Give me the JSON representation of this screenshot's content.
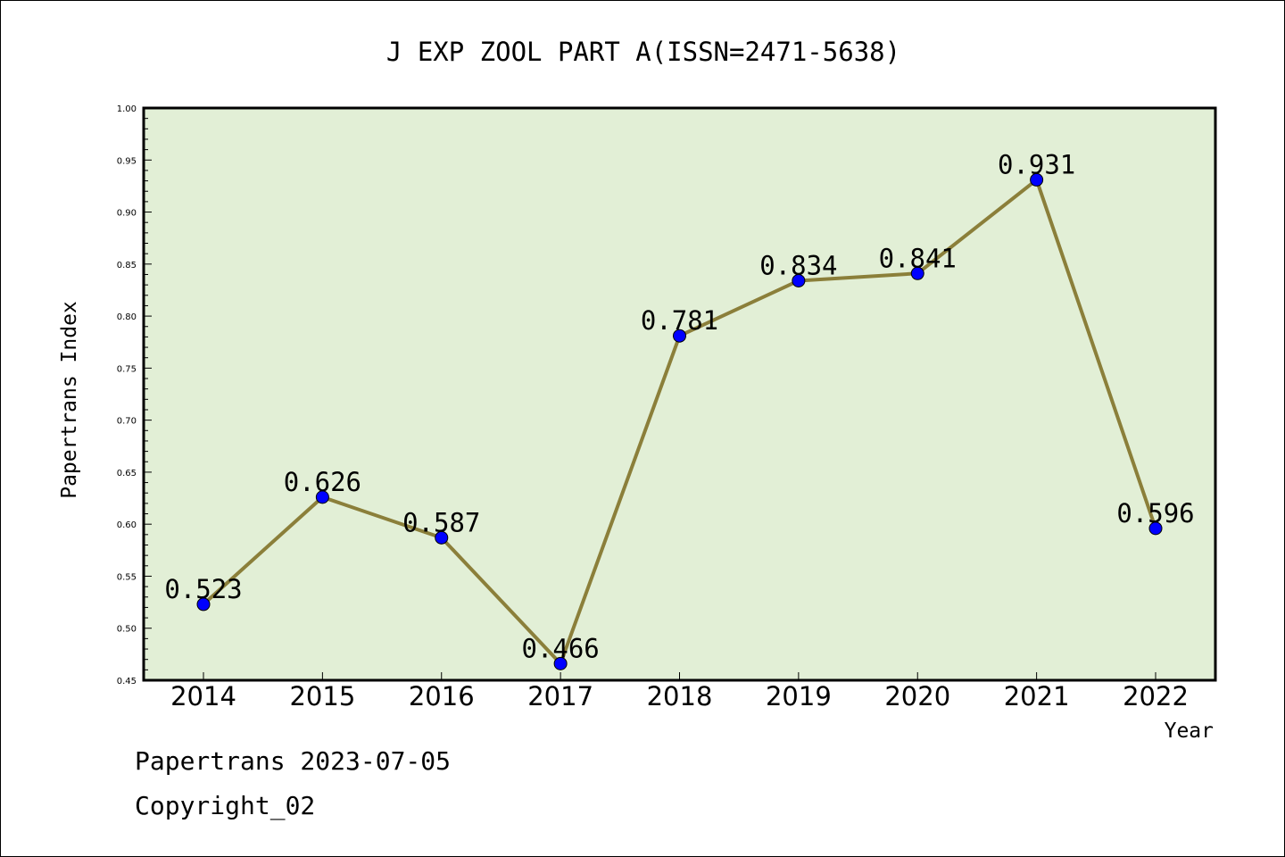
{
  "chart_data": {
    "type": "line",
    "title": "J EXP ZOOL PART A(ISSN=2471-5638)",
    "xlabel": "Year",
    "ylabel": "Papertrans Index",
    "categories": [
      "2014",
      "2015",
      "2016",
      "2017",
      "2018",
      "2019",
      "2020",
      "2021",
      "2022"
    ],
    "series": [
      {
        "values": [
          0.523,
          0.626,
          0.587,
          0.466,
          0.781,
          0.834,
          0.841,
          0.931,
          0.596
        ]
      }
    ],
    "data_labels": [
      "0.523",
      "0.626",
      "0.587",
      "0.466",
      "0.781",
      "0.834",
      "0.841",
      "0.931",
      "0.596"
    ],
    "ylim": [
      0.45,
      1.0
    ],
    "yticks": [
      "0.45",
      "0.50",
      "0.55",
      "0.60",
      "0.65",
      "0.70",
      "0.75",
      "0.80",
      "0.85",
      "0.90",
      "0.95",
      "1.00"
    ],
    "grid": false,
    "colors": {
      "plot_background": "#e2efd6",
      "line": "#8b7f3a",
      "marker": "#0000ff"
    }
  },
  "footer": {
    "line1": "Papertrans 2023-07-05",
    "line2": "Copyright_02"
  }
}
